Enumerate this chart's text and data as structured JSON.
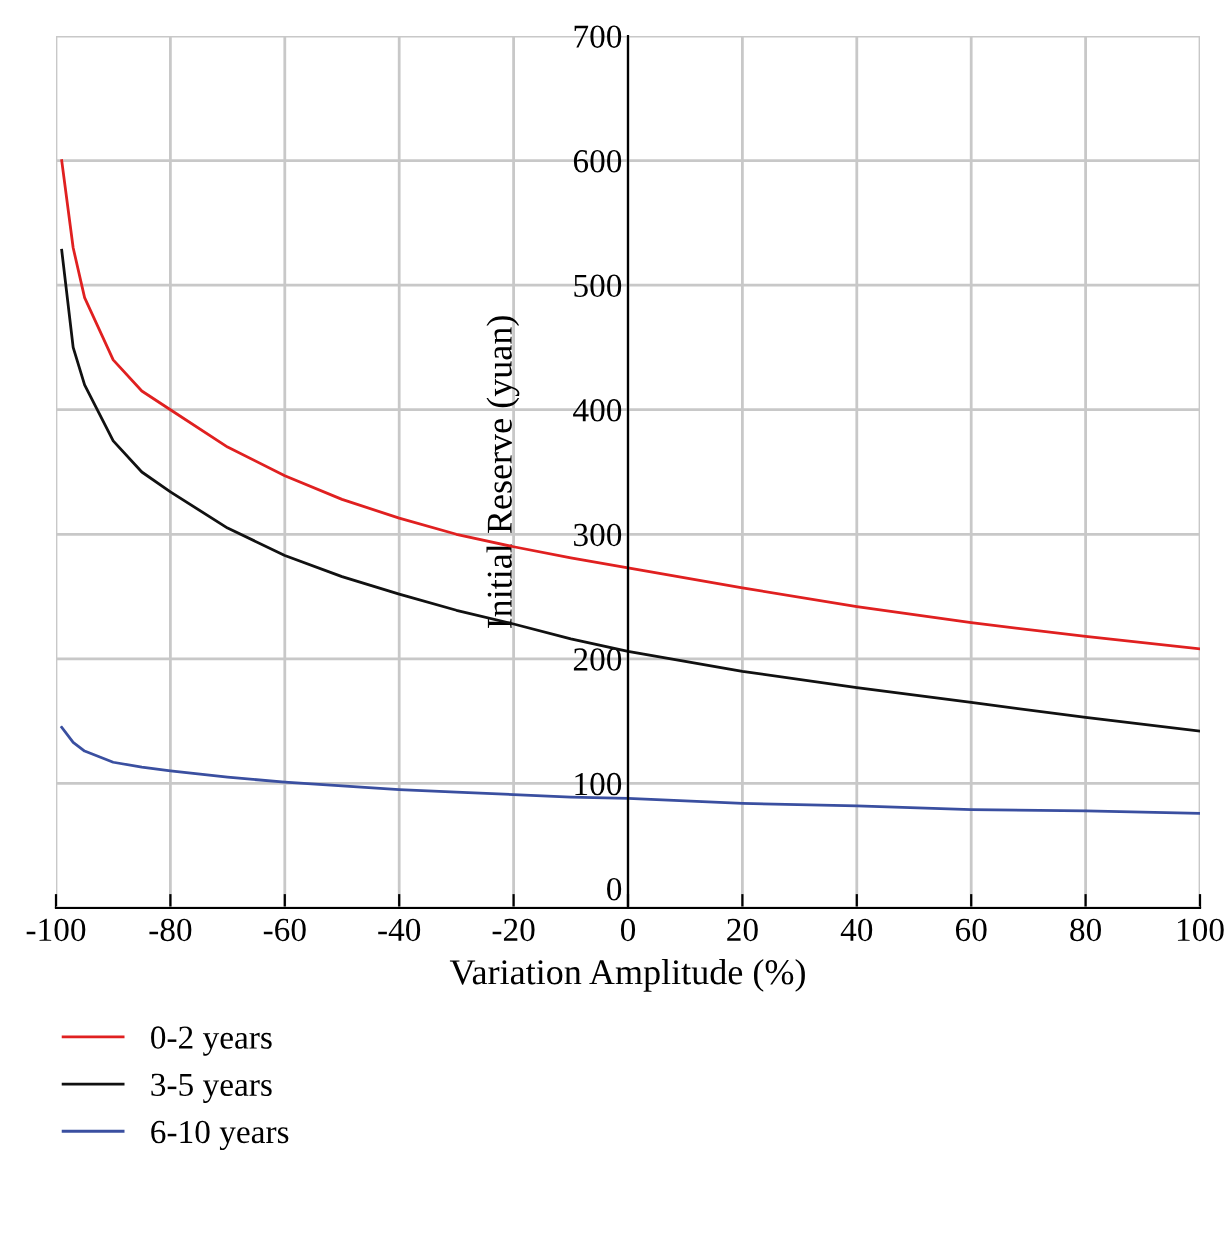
{
  "chart_data": {
    "type": "line",
    "xlabel": "Variation Amplitude (%)",
    "ylabel": "Initial Reserve (yuan)",
    "x": [
      -99,
      -97,
      -95,
      -90,
      -85,
      -80,
      -70,
      -60,
      -50,
      -40,
      -30,
      -20,
      -10,
      0,
      20,
      40,
      60,
      80,
      100
    ],
    "series": [
      {
        "name": "0-2 years",
        "color": "#e02020",
        "values": [
          600,
          530,
          490,
          440,
          415,
          400,
          370,
          347,
          328,
          313,
          300,
          290,
          281,
          273,
          257,
          242,
          229,
          218,
          208
        ]
      },
      {
        "name": "3-5 years",
        "color": "#111111",
        "values": [
          528,
          450,
          420,
          375,
          350,
          334,
          305,
          283,
          266,
          252,
          239,
          228,
          216,
          206,
          190,
          177,
          165,
          153,
          142
        ]
      },
      {
        "name": "6-10 years",
        "color": "#3a4fa0",
        "values": [
          145,
          133,
          126,
          117,
          113,
          110,
          105,
          101,
          98,
          95,
          93,
          91,
          89,
          88,
          84,
          82,
          79,
          78,
          76
        ]
      }
    ],
    "xlim": [
      -100,
      100
    ],
    "ylim": [
      0,
      700
    ],
    "xticks": [
      -100,
      -80,
      -60,
      -40,
      -20,
      0,
      20,
      40,
      60,
      80,
      100
    ],
    "yticks": [
      0,
      100,
      200,
      300,
      400,
      500,
      600,
      700
    ],
    "grid": true,
    "legend": "bottom left",
    "marker": "none",
    "line_style": "solid"
  }
}
